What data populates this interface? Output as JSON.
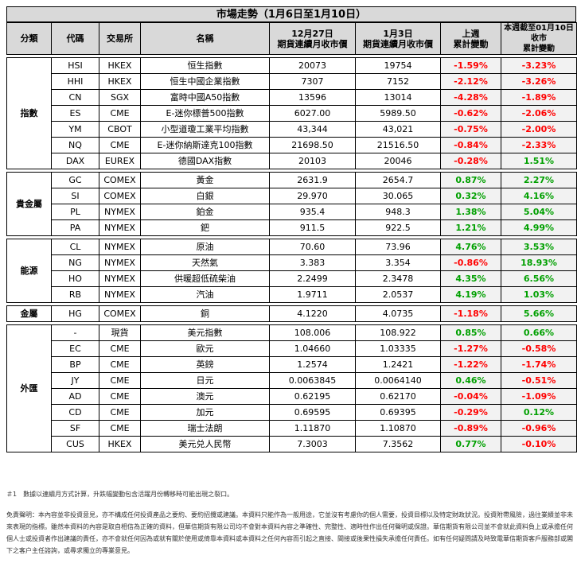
{
  "title": "市場走勢（1月6日至1月10日）",
  "headers": {
    "category": "分類",
    "code": "代碼",
    "exchange": "交易所",
    "name": "名稱",
    "col1_line1": "12月27日",
    "col1_line2": "期貨連續月收市價",
    "col2_line1": "1月3日",
    "col2_line2": "期貨連續月收市價",
    "chg1_line1": "上週",
    "chg1_line2": "累計變動",
    "chg2_line1": "本週截至01月10日收市",
    "chg2_line2": "累計變動"
  },
  "groups": [
    {
      "category": "指數",
      "rows": [
        {
          "code": "HSI",
          "exchange": "HKEX",
          "name": "恒生指數",
          "p1": "20073",
          "p2": "19754",
          "c1": "-1.59%",
          "c2": "-3.23%"
        },
        {
          "code": "HHI",
          "exchange": "HKEX",
          "name": "恒生中國企業指數",
          "p1": "7307",
          "p2": "7152",
          "c1": "-2.12%",
          "c2": "-3.26%"
        },
        {
          "code": "CN",
          "exchange": "SGX",
          "name": "富時中國A50指數",
          "p1": "13596",
          "p2": "13014",
          "c1": "-4.28%",
          "c2": "-1.89%"
        },
        {
          "code": "ES",
          "exchange": "CME",
          "name": "E-迷你標普500指數",
          "p1": "6027.00",
          "p2": "5989.50",
          "c1": "-0.62%",
          "c2": "-2.06%"
        },
        {
          "code": "YM",
          "exchange": "CBOT",
          "name": "小型道瓊工業平均指數",
          "p1": "43,344",
          "p2": "43,021",
          "c1": "-0.75%",
          "c2": "-2.00%"
        },
        {
          "code": "NQ",
          "exchange": "CME",
          "name": "E-迷你納斯達克100指數",
          "p1": "21698.50",
          "p2": "21516.50",
          "c1": "-0.84%",
          "c2": "-2.33%"
        },
        {
          "code": "DAX",
          "exchange": "EUREX",
          "name": "德國DAX指數",
          "p1": "20103",
          "p2": "20046",
          "c1": "-0.28%",
          "c2": "1.51%"
        }
      ]
    },
    {
      "category": "貴金屬",
      "rows": [
        {
          "code": "GC",
          "exchange": "COMEX",
          "name": "黃金",
          "p1": "2631.9",
          "p2": "2654.7",
          "c1": "0.87%",
          "c2": "2.27%"
        },
        {
          "code": "SI",
          "exchange": "COMEX",
          "name": "白銀",
          "p1": "29.970",
          "p2": "30.065",
          "c1": "0.32%",
          "c2": "4.16%"
        },
        {
          "code": "PL",
          "exchange": "NYMEX",
          "name": "鉑金",
          "p1": "935.4",
          "p2": "948.3",
          "c1": "1.38%",
          "c2": "5.04%"
        },
        {
          "code": "PA",
          "exchange": "NYMEX",
          "name": "鈀",
          "p1": "911.5",
          "p2": "922.5",
          "c1": "1.21%",
          "c2": "4.99%"
        }
      ]
    },
    {
      "category": "能源",
      "rows": [
        {
          "code": "CL",
          "exchange": "NYMEX",
          "name": "原油",
          "p1": "70.60",
          "p2": "73.96",
          "c1": "4.76%",
          "c2": "3.53%"
        },
        {
          "code": "NG",
          "exchange": "NYMEX",
          "name": "天然氣",
          "p1": "3.383",
          "p2": "3.354",
          "c1": "-0.86%",
          "c2": "18.93%"
        },
        {
          "code": "HO",
          "exchange": "NYMEX",
          "name": "供暖超低硫柴油",
          "p1": "2.2499",
          "p2": "2.3478",
          "c1": "4.35%",
          "c2": "6.56%"
        },
        {
          "code": "RB",
          "exchange": "NYMEX",
          "name": "汽油",
          "p1": "1.9711",
          "p2": "2.0537",
          "c1": "4.19%",
          "c2": "1.03%"
        }
      ]
    },
    {
      "category": "金屬",
      "rows": [
        {
          "code": "HG",
          "exchange": "COMEX",
          "name": "銅",
          "p1": "4.1220",
          "p2": "4.0735",
          "c1": "-1.18%",
          "c2": "5.66%"
        }
      ]
    },
    {
      "category": "外匯",
      "rows": [
        {
          "code": "-",
          "exchange": "現貨",
          "name": "美元指數",
          "p1": "108.006",
          "p2": "108.922",
          "c1": "0.85%",
          "c2": "0.66%"
        },
        {
          "code": "EC",
          "exchange": "CME",
          "name": "歐元",
          "p1": "1.04660",
          "p2": "1.03335",
          "c1": "-1.27%",
          "c2": "-0.58%"
        },
        {
          "code": "BP",
          "exchange": "CME",
          "name": "英鎊",
          "p1": "1.2574",
          "p2": "1.2421",
          "c1": "-1.22%",
          "c2": "-1.74%"
        },
        {
          "code": "JY",
          "exchange": "CME",
          "name": "日元",
          "p1": "0.0063845",
          "p2": "0.0064140",
          "c1": "0.46%",
          "c2": "-0.51%"
        },
        {
          "code": "AD",
          "exchange": "CME",
          "name": "澳元",
          "p1": "0.62195",
          "p2": "0.62170",
          "c1": "-0.04%",
          "c2": "-1.09%"
        },
        {
          "code": "CD",
          "exchange": "CME",
          "name": "加元",
          "p1": "0.69595",
          "p2": "0.69395",
          "c1": "-0.29%",
          "c2": "0.12%"
        },
        {
          "code": "SF",
          "exchange": "CME",
          "name": "瑞士法朗",
          "p1": "1.11870",
          "p2": "1.10870",
          "c1": "-0.89%",
          "c2": "-0.96%"
        },
        {
          "code": "CUS",
          "exchange": "HKEX",
          "name": "美元兑人民幣",
          "p1": "7.3003",
          "p2": "7.3562",
          "c1": "0.77%",
          "c2": "-0.10%"
        }
      ]
    }
  ],
  "footnote": "＃1　數據以連續月方式計算，升跌幅變動包含活躍月份轉移時可能出現之裂口。",
  "disclaimer": "免責聲明：本內容並非投資意見，亦不構成任何投資產品之要約、要約招攬或建議。本資料只能作為一般用途，它並沒有考慮你的個人需要，投資目標以及特定財政狀況。投資附帶風險，過往業績並非未來表現的指標。雖然本資料的內容是取自相信為正確的資料，但華信期貨有限公司均不會對本資料內容之準確性、完整性、適時性作出任何聲明或保證。華信期貨有限公司並不會就此資料負上或承擔任何個人士或投資者作出建議的責任，亦不會就任何因為或就有關於使用或倚靠本資料或本資料之任何內容而引起之直接、間接或後果性損失承擔任何責任。如有任何疑問請及時致電華信期貨客戶服務部或閣下之客户主任諮詢，或尋求獨立的專業意見。"
}
